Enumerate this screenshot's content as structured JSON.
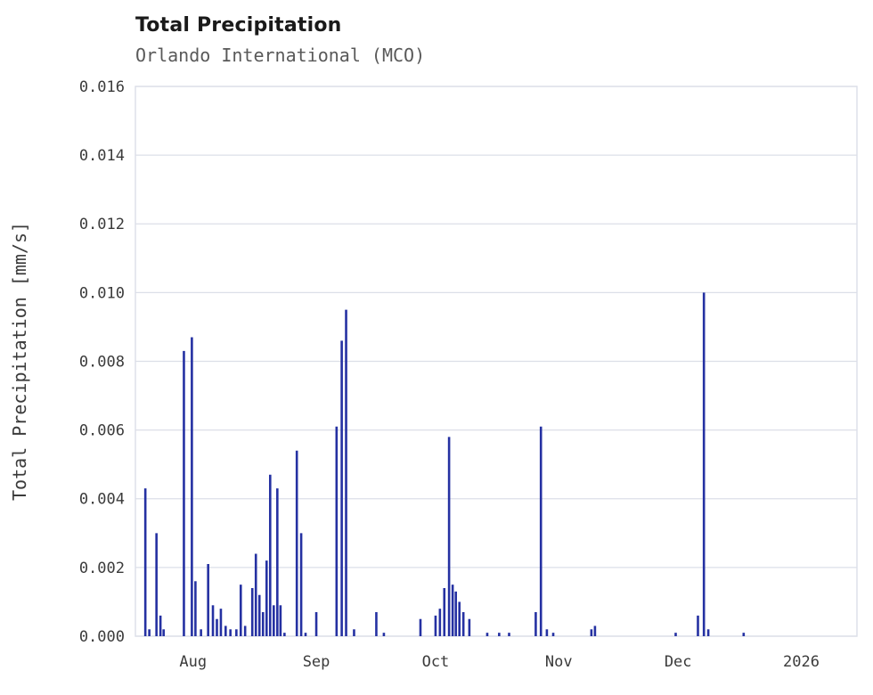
{
  "header": {
    "title": "Total Precipitation",
    "subtitle": "Orlando International (MCO)"
  },
  "chart_data": {
    "type": "bar",
    "title": "Total Precipitation",
    "subtitle": "Orlando International (MCO)",
    "xlabel": "",
    "ylabel": "Total Precipitation [mm/s]",
    "ylim": [
      0,
      0.016
    ],
    "y_ticks": [
      "0.000",
      "0.002",
      "0.004",
      "0.006",
      "0.008",
      "0.010",
      "0.012",
      "0.014",
      "0.016"
    ],
    "y_tick_values": [
      0,
      0.002,
      0.004,
      0.006,
      0.008,
      0.01,
      0.012,
      0.014,
      0.016
    ],
    "x_unit": "days relative to Aug 1",
    "xlim": [
      -14.5,
      167
    ],
    "x_ticks": [
      {
        "label": "Aug",
        "x": 0
      },
      {
        "label": "Sep",
        "x": 31
      },
      {
        "label": "Oct",
        "x": 61
      },
      {
        "label": "Nov",
        "x": 92
      },
      {
        "label": "Dec",
        "x": 122
      },
      {
        "label": "2026",
        "x": 153
      }
    ],
    "grid": true,
    "legend": "none",
    "bar_color": "#2531a2",
    "grid_color": "#dcdfe8",
    "x": [
      -12,
      -11,
      -9.2,
      -8.2,
      -7.4,
      -2.3,
      -0.3,
      0.6,
      2,
      3.8,
      5,
      6,
      7,
      8.2,
      9.4,
      10.9,
      12,
      13.1,
      14.9,
      15.8,
      16.7,
      17.6,
      18.5,
      19.4,
      20.3,
      21.2,
      22,
      23,
      26.1,
      27.2,
      28.3,
      31,
      36.1,
      37.4,
      38.5,
      40.5,
      46.1,
      48,
      57.2,
      61,
      62.1,
      63.2,
      64.4,
      65.3,
      66.1,
      67,
      68,
      69.5,
      74,
      77,
      79.5,
      86.2,
      87.5,
      89,
      90.6,
      100.2,
      101.1,
      121.4,
      127,
      128.5,
      129.6,
      138.5
    ],
    "values": [
      0.0043,
      0.0002,
      0.003,
      0.0006,
      0.0002,
      0.0083,
      0.0087,
      0.0016,
      0.0002,
      0.0021,
      0.0009,
      0.0005,
      0.0008,
      0.0003,
      0.0002,
      0.0002,
      0.0015,
      0.0003,
      0.0014,
      0.0024,
      0.0012,
      0.0007,
      0.0022,
      0.0047,
      0.0009,
      0.0043,
      0.0009,
      0.0001,
      0.0054,
      0.003,
      0.0001,
      0.0007,
      0.0061,
      0.0086,
      0.0095,
      0.0002,
      0.0007,
      0.0001,
      0.0005,
      0.0006,
      0.0008,
      0.0014,
      0.0058,
      0.0015,
      0.0013,
      0.001,
      0.0007,
      0.0005,
      0.0001,
      0.0001,
      0.0001,
      0.0007,
      0.0061,
      0.0002,
      0.0001,
      0.0002,
      0.0003,
      0.0001,
      0.0006,
      0.01,
      0.0002,
      0.0001
    ]
  }
}
